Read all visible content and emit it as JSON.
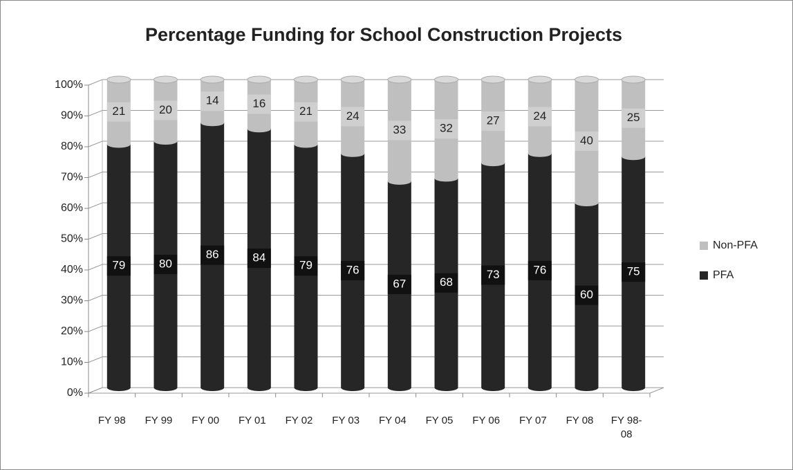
{
  "chart_data": {
    "type": "stacked_bar",
    "title": "Percentage Funding for School Construction Projects",
    "categories": [
      "FY 98",
      "FY 99",
      "FY 00",
      "FY 01",
      "FY 02",
      "FY 03",
      "FY 04",
      "FY 05",
      "FY 06",
      "FY 07",
      "FY 08",
      "FY 98-08"
    ],
    "series": [
      {
        "name": "PFA",
        "color": "#262626",
        "values": [
          79,
          80,
          86,
          84,
          79,
          76,
          67,
          68,
          73,
          76,
          60,
          75
        ]
      },
      {
        "name": "Non-PFA",
        "color": "#bfbfbf",
        "values": [
          21,
          20,
          14,
          16,
          21,
          24,
          33,
          32,
          27,
          24,
          40,
          25
        ]
      }
    ],
    "ylim": [
      0,
      100
    ],
    "yticks": [
      {
        "value": 0,
        "label": "0%"
      },
      {
        "value": 10,
        "label": "10%"
      },
      {
        "value": 20,
        "label": "20%"
      },
      {
        "value": 30,
        "label": "30%"
      },
      {
        "value": 40,
        "label": "40%"
      },
      {
        "value": 50,
        "label": "50%"
      },
      {
        "value": 60,
        "label": "60%"
      },
      {
        "value": 70,
        "label": "70%"
      },
      {
        "value": 80,
        "label": "80%"
      },
      {
        "value": 90,
        "label": "90%"
      },
      {
        "value": 100,
        "label": "100%"
      }
    ],
    "grid": true,
    "legend": "right"
  }
}
